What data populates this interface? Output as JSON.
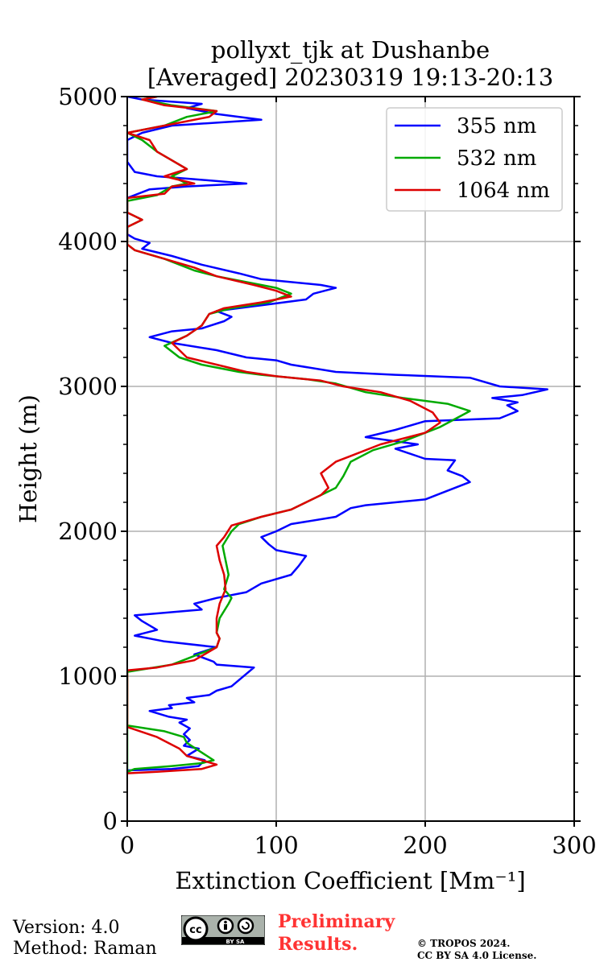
{
  "chart_data": {
    "type": "line",
    "orientation": "vertical-profile",
    "title": "pollyxt_tjk at Dushanbe",
    "subtitle": "[Averaged] 20230319 19:13-20:13",
    "xlabel": "Extinction Coefficient [Mm⁻¹]",
    "ylabel": "Height (m)",
    "xlim": [
      0,
      300
    ],
    "ylim": [
      0,
      5000
    ],
    "xticks": [
      "0",
      "100",
      "200",
      "300"
    ],
    "yticks": [
      "0",
      "1000",
      "2000",
      "3000",
      "4000",
      "5000"
    ],
    "xtick_values": [
      0,
      100,
      200,
      300
    ],
    "ytick_values": [
      0,
      1000,
      2000,
      3000,
      4000,
      5000
    ],
    "grid": true,
    "legend_position": "top-right",
    "series": [
      {
        "name": "355 nm",
        "color": "#0000ff",
        "points": [
          [
            0,
            350
          ],
          [
            30,
            360
          ],
          [
            48,
            380
          ],
          [
            52,
            420
          ],
          [
            40,
            450
          ],
          [
            48,
            500
          ],
          [
            38,
            520
          ],
          [
            42,
            560
          ],
          [
            38,
            600
          ],
          [
            42,
            640
          ],
          [
            35,
            680
          ],
          [
            40,
            700
          ],
          [
            28,
            720
          ],
          [
            15,
            760
          ],
          [
            30,
            780
          ],
          [
            28,
            800
          ],
          [
            45,
            820
          ],
          [
            40,
            850
          ],
          [
            55,
            870
          ],
          [
            60,
            900
          ],
          [
            70,
            930
          ],
          [
            85,
            1060
          ],
          [
            60,
            1080
          ],
          [
            58,
            1100
          ],
          [
            45,
            1150
          ],
          [
            60,
            1200
          ],
          [
            25,
            1240
          ],
          [
            5,
            1280
          ],
          [
            20,
            1320
          ],
          [
            10,
            1380
          ],
          [
            5,
            1420
          ],
          [
            50,
            1460
          ],
          [
            45,
            1500
          ],
          [
            60,
            1540
          ],
          [
            80,
            1580
          ],
          [
            90,
            1640
          ],
          [
            110,
            1700
          ],
          [
            115,
            1760
          ],
          [
            120,
            1830
          ],
          [
            100,
            1870
          ],
          [
            95,
            1910
          ],
          [
            90,
            1960
          ],
          [
            100,
            2000
          ],
          [
            110,
            2050
          ],
          [
            140,
            2100
          ],
          [
            150,
            2160
          ],
          [
            160,
            2180
          ],
          [
            200,
            2220
          ],
          [
            210,
            2260
          ],
          [
            230,
            2340
          ],
          [
            225,
            2380
          ],
          [
            215,
            2420
          ],
          [
            220,
            2490
          ],
          [
            200,
            2500
          ],
          [
            180,
            2570
          ],
          [
            195,
            2600
          ],
          [
            160,
            2650
          ],
          [
            180,
            2700
          ],
          [
            200,
            2760
          ],
          [
            250,
            2780
          ],
          [
            262,
            2830
          ],
          [
            255,
            2870
          ],
          [
            262,
            2890
          ],
          [
            245,
            2920
          ],
          [
            265,
            2940
          ],
          [
            282,
            2980
          ],
          [
            250,
            3000
          ],
          [
            230,
            3060
          ],
          [
            180,
            3080
          ],
          [
            140,
            3100
          ],
          [
            110,
            3150
          ],
          [
            100,
            3180
          ],
          [
            80,
            3200
          ],
          [
            60,
            3250
          ],
          [
            30,
            3300
          ],
          [
            15,
            3340
          ],
          [
            30,
            3380
          ],
          [
            50,
            3400
          ],
          [
            65,
            3450
          ],
          [
            70,
            3480
          ],
          [
            60,
            3520
          ],
          [
            90,
            3560
          ],
          [
            120,
            3600
          ],
          [
            125,
            3640
          ],
          [
            140,
            3680
          ],
          [
            130,
            3700
          ],
          [
            90,
            3740
          ],
          [
            75,
            3780
          ],
          [
            50,
            3840
          ],
          [
            30,
            3900
          ],
          [
            10,
            3950
          ],
          [
            15,
            3990
          ],
          [
            5,
            4020
          ],
          [
            0,
            4050
          ],
          [
            0,
            4300
          ],
          [
            15,
            4360
          ],
          [
            40,
            4380
          ],
          [
            80,
            4400
          ],
          [
            45,
            4430
          ],
          [
            20,
            4450
          ],
          [
            5,
            4480
          ],
          [
            0,
            4550
          ],
          [
            0,
            4700
          ],
          [
            10,
            4750
          ],
          [
            30,
            4800
          ],
          [
            90,
            4840
          ],
          [
            60,
            4880
          ],
          [
            40,
            4920
          ],
          [
            50,
            4950
          ],
          [
            10,
            4980
          ],
          [
            0,
            5000
          ]
        ]
      },
      {
        "name": "532 nm",
        "color": "#00aa00",
        "points": [
          [
            0,
            660
          ],
          [
            25,
            620
          ],
          [
            38,
            580
          ],
          [
            40,
            540
          ],
          [
            58,
            420
          ],
          [
            50,
            400
          ],
          [
            30,
            380
          ],
          [
            5,
            360
          ],
          [
            0,
            340
          ],
          [
            0,
            1030
          ],
          [
            30,
            1080
          ],
          [
            40,
            1120
          ],
          [
            60,
            1200
          ],
          [
            62,
            1260
          ],
          [
            60,
            1300
          ],
          [
            62,
            1400
          ],
          [
            68,
            1500
          ],
          [
            70,
            1540
          ],
          [
            65,
            1600
          ],
          [
            68,
            1700
          ],
          [
            66,
            1800
          ],
          [
            64,
            1900
          ],
          [
            70,
            2000
          ],
          [
            75,
            2050
          ],
          [
            90,
            2100
          ],
          [
            110,
            2150
          ],
          [
            120,
            2200
          ],
          [
            130,
            2250
          ],
          [
            140,
            2300
          ],
          [
            145,
            2380
          ],
          [
            150,
            2480
          ],
          [
            165,
            2560
          ],
          [
            185,
            2620
          ],
          [
            210,
            2720
          ],
          [
            230,
            2830
          ],
          [
            215,
            2880
          ],
          [
            185,
            2920
          ],
          [
            160,
            2960
          ],
          [
            140,
            3020
          ],
          [
            120,
            3050
          ],
          [
            90,
            3080
          ],
          [
            75,
            3100
          ],
          [
            50,
            3150
          ],
          [
            35,
            3200
          ],
          [
            25,
            3280
          ],
          [
            40,
            3350
          ],
          [
            50,
            3420
          ],
          [
            55,
            3500
          ],
          [
            70,
            3540
          ],
          [
            95,
            3580
          ],
          [
            110,
            3640
          ],
          [
            100,
            3680
          ],
          [
            90,
            3700
          ],
          [
            60,
            3760
          ],
          [
            45,
            3800
          ],
          [
            25,
            3880
          ],
          [
            5,
            3940
          ],
          [
            0,
            3980
          ],
          [
            0,
            4100
          ],
          [
            10,
            4150
          ],
          [
            0,
            4200
          ],
          [
            0,
            4280
          ],
          [
            20,
            4320
          ],
          [
            30,
            4380
          ],
          [
            40,
            4400
          ],
          [
            30,
            4450
          ],
          [
            40,
            4500
          ],
          [
            30,
            4560
          ],
          [
            20,
            4620
          ],
          [
            10,
            4700
          ],
          [
            0,
            4750
          ],
          [
            25,
            4800
          ],
          [
            40,
            4860
          ],
          [
            60,
            4900
          ],
          [
            30,
            4940
          ],
          [
            10,
            4980
          ],
          [
            20,
            5000
          ]
        ]
      },
      {
        "name": "1064 nm",
        "color": "#dd0000",
        "points": [
          [
            0,
            330
          ],
          [
            20,
            340
          ],
          [
            50,
            360
          ],
          [
            60,
            390
          ],
          [
            50,
            420
          ],
          [
            40,
            450
          ],
          [
            35,
            500
          ],
          [
            20,
            580
          ],
          [
            0,
            650
          ],
          [
            0,
            1040
          ],
          [
            20,
            1060
          ],
          [
            45,
            1110
          ],
          [
            60,
            1200
          ],
          [
            62,
            1260
          ],
          [
            60,
            1300
          ],
          [
            60,
            1400
          ],
          [
            62,
            1500
          ],
          [
            66,
            1600
          ],
          [
            65,
            1700
          ],
          [
            62,
            1800
          ],
          [
            60,
            1900
          ],
          [
            65,
            1960
          ],
          [
            70,
            2040
          ],
          [
            90,
            2100
          ],
          [
            110,
            2150
          ],
          [
            120,
            2200
          ],
          [
            130,
            2250
          ],
          [
            135,
            2300
          ],
          [
            130,
            2400
          ],
          [
            140,
            2480
          ],
          [
            150,
            2520
          ],
          [
            170,
            2600
          ],
          [
            200,
            2680
          ],
          [
            210,
            2750
          ],
          [
            205,
            2820
          ],
          [
            190,
            2900
          ],
          [
            170,
            2960
          ],
          [
            145,
            3000
          ],
          [
            130,
            3040
          ],
          [
            100,
            3070
          ],
          [
            80,
            3100
          ],
          [
            60,
            3150
          ],
          [
            40,
            3200
          ],
          [
            30,
            3300
          ],
          [
            40,
            3350
          ],
          [
            50,
            3420
          ],
          [
            55,
            3500
          ],
          [
            65,
            3540
          ],
          [
            90,
            3580
          ],
          [
            110,
            3620
          ],
          [
            100,
            3660
          ],
          [
            85,
            3700
          ],
          [
            60,
            3760
          ],
          [
            45,
            3820
          ],
          [
            25,
            3880
          ],
          [
            5,
            3940
          ],
          [
            0,
            3980
          ],
          [
            0,
            4100
          ],
          [
            10,
            4150
          ],
          [
            0,
            4200
          ],
          [
            0,
            4300
          ],
          [
            25,
            4330
          ],
          [
            30,
            4380
          ],
          [
            45,
            4400
          ],
          [
            25,
            4450
          ],
          [
            40,
            4500
          ],
          [
            30,
            4560
          ],
          [
            20,
            4620
          ],
          [
            15,
            4700
          ],
          [
            0,
            4750
          ],
          [
            25,
            4800
          ],
          [
            55,
            4860
          ],
          [
            60,
            4900
          ],
          [
            25,
            4940
          ],
          [
            10,
            4980
          ],
          [
            20,
            5000
          ]
        ]
      }
    ]
  },
  "footer": {
    "version": "Version: 4.0",
    "method": "Method: Raman",
    "preliminary_line1": "Preliminary",
    "preliminary_line2": "Results.",
    "copyright_line1": "© TROPOS 2024.",
    "copyright_line2": "CC BY SA 4.0 License.",
    "license_badge_text": "BY SA"
  }
}
